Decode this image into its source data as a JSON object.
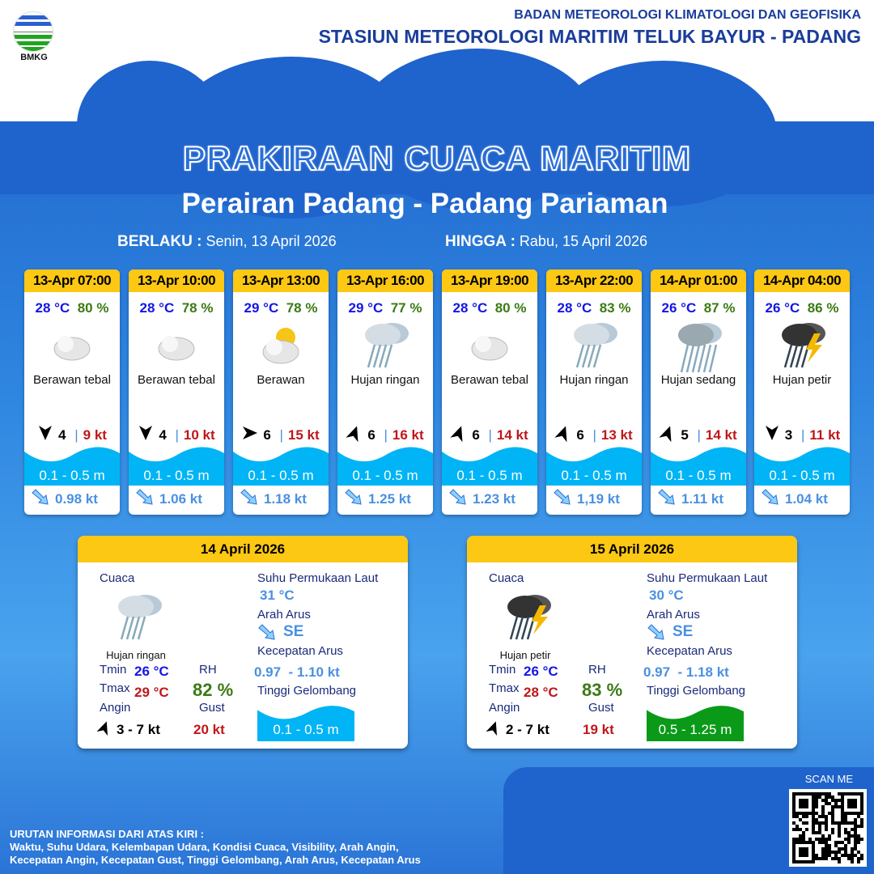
{
  "header": {
    "logo_text": "BMKG",
    "org_line1": "BADAN METEOROLOGI KLIMATOLOGI DAN GEOFISIKA",
    "org_line2": "STASIUN METEOROLOGI MARITIM TELUK BAYUR - PADANG"
  },
  "title": "PRAKIRAAN CUACA MARITIM",
  "subtitle": "Perairan Padang - Padang Pariaman",
  "validity": {
    "from_label": "BERLAKU :",
    "from_value": "Senin, 13 April 2026",
    "to_label": "HINGGA :",
    "to_value": "Rabu, 15 April 2026"
  },
  "colors": {
    "header_yellow": "#fcc813",
    "temp_blue": "#1515e6",
    "rh_green": "#3b7a14",
    "gust_red": "#c0161a",
    "wave_blue": "#00b4f5",
    "wave_green": "#0a9a18"
  },
  "forecasts": [
    {
      "time": "13-Apr 07:00",
      "temp": "28 °C",
      "rh": "80 %",
      "icon": "cloudy-icon",
      "condition": "Berawan tebal",
      "wind_dir_deg": 180,
      "wind": "4",
      "gust": "9 kt",
      "wave": "0.1 - 0.5 m",
      "current": "0.98 kt"
    },
    {
      "time": "13-Apr 10:00",
      "temp": "28 °C",
      "rh": "78 %",
      "icon": "cloudy-icon",
      "condition": "Berawan tebal",
      "wind_dir_deg": 180,
      "wind": "4",
      "gust": "10 kt",
      "wave": "0.1 - 0.5 m",
      "current": "1.06 kt"
    },
    {
      "time": "13-Apr 13:00",
      "temp": "29 °C",
      "rh": "78 %",
      "icon": "partly-cloudy-icon",
      "condition": "Berawan",
      "wind_dir_deg": 90,
      "wind": "6",
      "gust": "15 kt",
      "wave": "0.1 - 0.5 m",
      "current": "1.18 kt"
    },
    {
      "time": "13-Apr 16:00",
      "temp": "29 °C",
      "rh": "77 %",
      "icon": "light-rain-icon",
      "condition": "Hujan ringan",
      "wind_dir_deg": 20,
      "wind": "6",
      "gust": "16 kt",
      "wave": "0.1 - 0.5 m",
      "current": "1.25 kt"
    },
    {
      "time": "13-Apr 19:00",
      "temp": "28 °C",
      "rh": "80 %",
      "icon": "cloudy-icon",
      "condition": "Berawan tebal",
      "wind_dir_deg": 20,
      "wind": "6",
      "gust": "14 kt",
      "wave": "0.1 - 0.5 m",
      "current": "1.23 kt"
    },
    {
      "time": "13-Apr 22:00",
      "temp": "28 °C",
      "rh": "83 %",
      "icon": "light-rain-icon",
      "condition": "Hujan ringan",
      "wind_dir_deg": 20,
      "wind": "6",
      "gust": "13 kt",
      "wave": "0.1 - 0.5 m",
      "current": "1,19 kt"
    },
    {
      "time": "14-Apr 01:00",
      "temp": "26 °C",
      "rh": "87 %",
      "icon": "moderate-rain-icon",
      "condition": "Hujan sedang",
      "wind_dir_deg": 20,
      "wind": "5",
      "gust": "14 kt",
      "wave": "0.1 - 0.5 m",
      "current": "1.11 kt"
    },
    {
      "time": "14-Apr 04:00",
      "temp": "26 °C",
      "rh": "86 %",
      "icon": "thunderstorm-icon",
      "condition": "Hujan petir",
      "wind_dir_deg": 180,
      "wind": "3",
      "gust": "11 kt",
      "wave": "0.1 - 0.5 m",
      "current": "1.04 kt"
    }
  ],
  "labels": {
    "weather": "Cuaca",
    "sst": "Suhu Permukaan Laut",
    "current_dir": "Arah Arus",
    "current_speed": "Kecepatan Arus",
    "wave_height": "Tinggi Gelombang",
    "tmin": "Tmin",
    "tmax": "Tmax",
    "rh": "RH",
    "wind": "Angin",
    "gust": "Gust"
  },
  "daily": [
    {
      "date": "14 April 2026",
      "icon": "light-rain-icon",
      "condition": "Hujan ringan",
      "tmin": "26 °C",
      "tmax": "29 °C",
      "rh": "82 %",
      "wind": "3  - 7 kt",
      "gust": "20 kt",
      "sst": "31 °C",
      "current_dir": "SE",
      "current_speed": "0.97  - 1.10 kt",
      "wave": "0.1 - 0.5 m",
      "wave_color": "#00b4f5"
    },
    {
      "date": "15 April 2026",
      "icon": "thunderstorm-icon",
      "condition": "Hujan petir",
      "tmin": "26 °C",
      "tmax": "28 °C",
      "rh": "83 %",
      "wind": "2  - 7 kt",
      "gust": "19 kt",
      "sst": "30 °C",
      "current_dir": "SE",
      "current_speed": "0.97  - 1.18 kt",
      "wave": "0.5 - 1.25 m",
      "wave_color": "#0a9a18"
    }
  ],
  "footer": {
    "scan": "SCAN ME",
    "info_title": "URUTAN INFORMASI DARI ATAS KIRI :",
    "info_line1": "Waktu, Suhu Udara, Kelembapan Udara, Kondisi Cuaca, Visibility, Arah Angin,",
    "info_line2": "Kecepatan Angin, Kecepatan Gust, Tinggi Gelombang, Arah Arus, Kecepatan Arus"
  }
}
